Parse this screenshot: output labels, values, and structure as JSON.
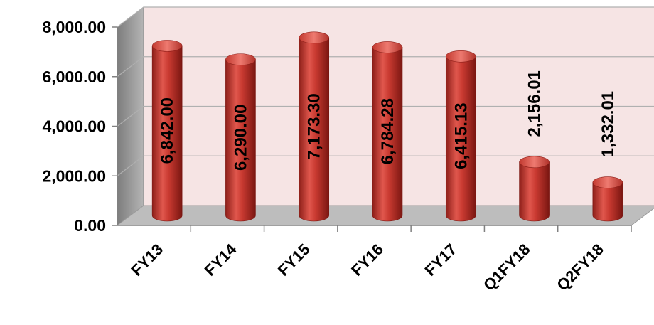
{
  "chart_data": {
    "type": "bar",
    "style": "3d-cylinder",
    "categories": [
      "FY13",
      "FY14",
      "FY15",
      "FY16",
      "FY17",
      "Q1FY18",
      "Q2FY18"
    ],
    "values": [
      6842.0,
      6290.0,
      7173.3,
      6784.28,
      6415.13,
      2156.01,
      1332.01
    ],
    "value_labels": [
      "6,842.00",
      "6,290.00",
      "7,173.30",
      "6,784.28",
      "6,415.13",
      "2,156.01",
      "1,332.01"
    ],
    "y_ticks": [
      "0.00",
      "2,000.00",
      "4,000.00",
      "6,000.00",
      "8,000.00"
    ],
    "ylim": [
      0,
      8000
    ],
    "grid": true,
    "legend": "none",
    "colors": {
      "bar": "#c0392b",
      "back_wall": "#f6e4e4",
      "side_wall": "#9a9a9a",
      "floor": "#bdbdbd",
      "grid": "#b0b0b0"
    }
  }
}
